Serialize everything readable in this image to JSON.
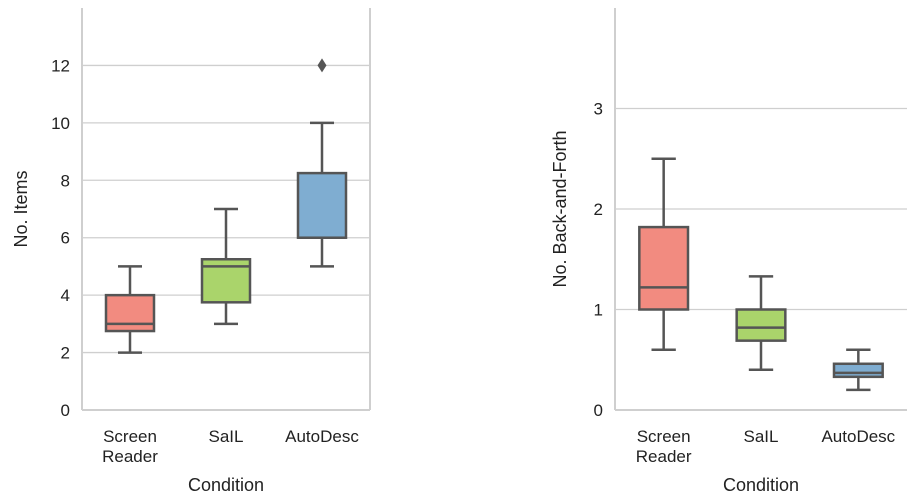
{
  "chart_data": [
    {
      "type": "box",
      "xlabel": "Condition",
      "ylabel": "No. Items",
      "categories": [
        [
          "Screen",
          "Reader"
        ],
        [
          "SaIL"
        ],
        [
          "AutoDesc"
        ]
      ],
      "yticks": [
        0,
        2,
        4,
        6,
        8,
        10,
        12
      ],
      "ylim": [
        0,
        14
      ],
      "grid": "horizontal",
      "boxes": [
        {
          "color": "#f28b80",
          "whisker_low": 2,
          "q1": 2.75,
          "median": 3,
          "q3": 4,
          "whisker_high": 5,
          "outliers": []
        },
        {
          "color": "#aad46b",
          "whisker_low": 3,
          "q1": 3.75,
          "median": 5,
          "q3": 5.25,
          "whisker_high": 7,
          "outliers": []
        },
        {
          "color": "#7fadd1",
          "whisker_low": 5,
          "q1": 6,
          "median": 6,
          "q3": 8.25,
          "whisker_high": 10,
          "outliers": [
            12
          ]
        }
      ]
    },
    {
      "type": "box",
      "xlabel": "Condition",
      "ylabel": "No. Back-and-Forth",
      "categories": [
        [
          "Screen",
          "Reader"
        ],
        [
          "SaIL"
        ],
        [
          "AutoDesc"
        ]
      ],
      "yticks": [
        0,
        1,
        2,
        3
      ],
      "ylim": [
        0,
        4
      ],
      "grid": "horizontal",
      "boxes": [
        {
          "color": "#f28b80",
          "whisker_low": 0.6,
          "q1": 1.0,
          "median": 1.22,
          "q3": 1.82,
          "whisker_high": 2.5,
          "outliers": []
        },
        {
          "color": "#aad46b",
          "whisker_low": 0.4,
          "q1": 0.69,
          "median": 0.82,
          "q3": 1.0,
          "whisker_high": 1.33,
          "outliers": []
        },
        {
          "color": "#7fadd1",
          "whisker_low": 0.2,
          "q1": 0.33,
          "median": 0.37,
          "q3": 0.46,
          "whisker_high": 0.6,
          "outliers": []
        }
      ]
    }
  ]
}
